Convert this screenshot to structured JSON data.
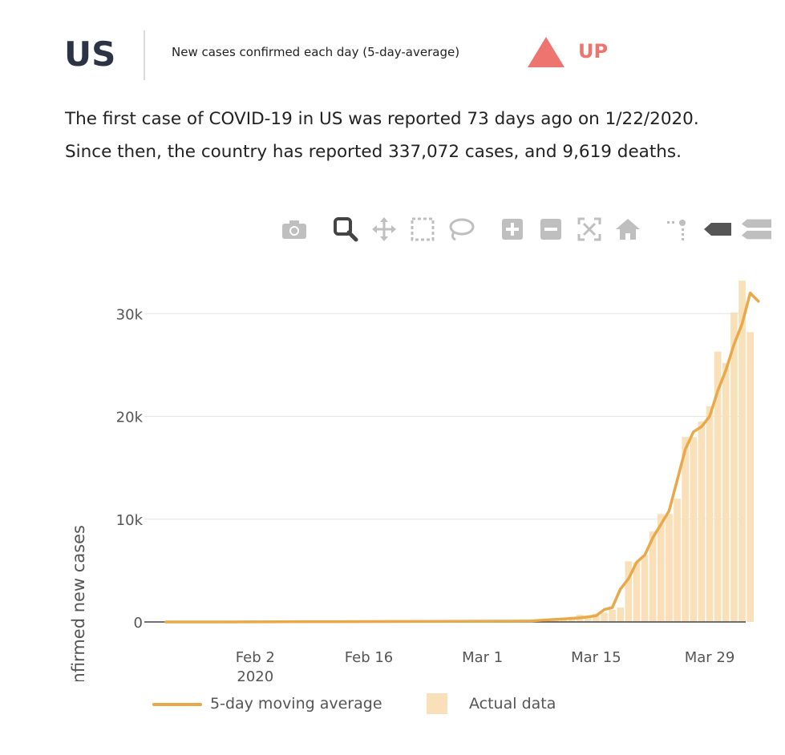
{
  "header": {
    "country": "US",
    "metric_label": "New cases confirmed each day (5-day-average)",
    "trend_label": "UP",
    "trend_color": "#ee7470",
    "trend_icon": "triangle-up-icon"
  },
  "summary": {
    "line1": "The first case of COVID-19 in US was reported 73 days ago on 1/22/2020.",
    "line2": "Since then, the country has reported 337,072 cases, and 9,619 deaths."
  },
  "toolbar": {
    "icons": [
      "camera-icon",
      "zoom-icon",
      "pan-icon",
      "box-select-icon",
      "lasso-select-icon",
      "zoom-in-icon",
      "zoom-out-icon",
      "autoscale-icon",
      "reset-axes-icon",
      "spike-lines-icon",
      "hover-closest-icon",
      "hover-compare-icon"
    ]
  },
  "legend": {
    "line_label": "5-day moving average",
    "bar_label": "Actual data"
  },
  "chart_data": {
    "type": "bar",
    "ylabel": "Confirmed new cases",
    "xlabel": "",
    "ylim": [
      0,
      34000
    ],
    "y_ticks": [
      0,
      10000,
      20000,
      30000
    ],
    "y_tick_labels": [
      "0",
      "10k",
      "20k",
      "30k"
    ],
    "x_tick_labels": [
      "Feb 2",
      "Feb 16",
      "Mar 1",
      "Mar 15",
      "Mar 29"
    ],
    "x_year_label": "2020",
    "grid": true,
    "series": [
      {
        "name": "Actual data",
        "type": "bar",
        "color": "#f9e0b8",
        "x": [
          "2020-03-08",
          "2020-03-09",
          "2020-03-10",
          "2020-03-11",
          "2020-03-12",
          "2020-03-13",
          "2020-03-14",
          "2020-03-15",
          "2020-03-16",
          "2020-03-17",
          "2020-03-18",
          "2020-03-19",
          "2020-03-20",
          "2020-03-21",
          "2020-03-22",
          "2020-03-23",
          "2020-03-24",
          "2020-03-25",
          "2020-03-26",
          "2020-03-27",
          "2020-03-28",
          "2020-03-29",
          "2020-03-30",
          "2020-03-31",
          "2020-04-01",
          "2020-04-02",
          "2020-04-03",
          "2020-04-04"
        ],
        "values": [
          120,
          200,
          290,
          430,
          500,
          700,
          500,
          800,
          900,
          1200,
          1400,
          5900,
          5800,
          6500,
          8800,
          10500,
          10500,
          12000,
          18000,
          18000,
          19500,
          21000,
          26300,
          25200,
          30100,
          33200,
          28200,
          0
        ]
      },
      {
        "name": "5-day moving average",
        "type": "line",
        "color": "#e9a94a",
        "x": [
          "2020-01-22",
          "2020-01-29",
          "2020-02-05",
          "2020-02-12",
          "2020-02-19",
          "2020-02-26",
          "2020-03-04",
          "2020-03-07",
          "2020-03-09",
          "2020-03-11",
          "2020-03-13",
          "2020-03-14",
          "2020-03-15",
          "2020-03-16",
          "2020-03-17",
          "2020-03-18",
          "2020-03-19",
          "2020-03-20",
          "2020-03-21",
          "2020-03-22",
          "2020-03-23",
          "2020-03-24",
          "2020-03-25",
          "2020-03-26",
          "2020-03-27",
          "2020-03-28",
          "2020-03-29",
          "2020-03-30",
          "2020-03-31",
          "2020-04-01",
          "2020-04-02",
          "2020-04-03"
        ],
        "values": [
          0,
          0,
          20,
          30,
          50,
          60,
          80,
          100,
          200,
          300,
          400,
          500,
          600,
          1200,
          1400,
          3200,
          4200,
          5800,
          6500,
          8200,
          9500,
          10800,
          13800,
          16800,
          18500,
          19000,
          20000,
          22500,
          24500,
          27000,
          29000,
          32000
        ]
      }
    ],
    "line_end": {
      "x": "2020-04-04",
      "value": 31200
    }
  }
}
